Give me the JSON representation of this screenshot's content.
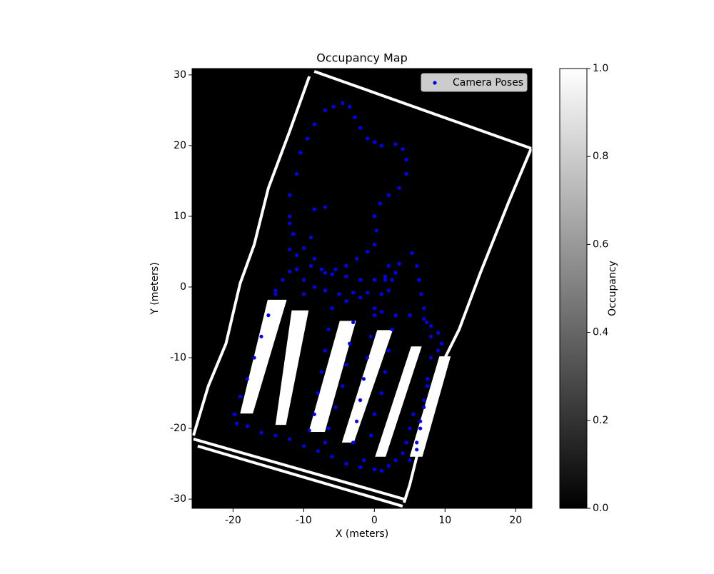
{
  "chart_data": {
    "type": "scatter",
    "title": "Occupancy Map",
    "x_label": "X (meters)",
    "y_label": "Y (meters)",
    "xlim": [
      -25.8,
      22.3
    ],
    "ylim": [
      -31.3,
      30.9
    ],
    "xticks": [
      -20,
      -10,
      0,
      10,
      20
    ],
    "yticks": [
      -30,
      -20,
      -10,
      0,
      10,
      20,
      30
    ],
    "legend": "upper right",
    "occupancy": {
      "empty_color": "#000000",
      "occupied_color": "#ffffff",
      "walls": [
        {
          "x": [
            -8.5,
            22.2
          ],
          "y": [
            30.5,
            19.6
          ]
        },
        {
          "x": [
            -9.2,
            -12,
            -15,
            -17,
            -19,
            -21,
            -23.5,
            -25.6
          ],
          "y": [
            29.8,
            22,
            14,
            6,
            0.5,
            -8,
            -14,
            -21
          ]
        },
        {
          "x": [
            -25.6,
            4.2
          ],
          "y": [
            -21.5,
            -30
          ]
        },
        {
          "x": [
            -25,
            4
          ],
          "y": [
            -22.5,
            -31
          ]
        },
        {
          "x": [
            22.2,
            19,
            15,
            12,
            10,
            7,
            5,
            4.2
          ],
          "y": [
            19.6,
            12,
            2,
            -6,
            -10,
            -20,
            -28,
            -30.5
          ]
        }
      ],
      "pillars": [
        {
          "x": [
            -15.1,
            -12.4,
            -17.2,
            -19
          ],
          "y": [
            -1.8,
            -1.8,
            -17.9,
            -17.9
          ]
        },
        {
          "x": [
            -11.7,
            -9.3,
            -12.5,
            -14
          ],
          "y": [
            -3.3,
            -3.3,
            -19.5,
            -19.5
          ]
        },
        {
          "x": [
            -4.9,
            -2.6,
            -7,
            -9.3
          ],
          "y": [
            -4.8,
            -4.8,
            -20.5,
            -20.5
          ]
        },
        {
          "x": [
            0.4,
            2.6,
            -2.9,
            -4.6
          ],
          "y": [
            -6.1,
            -6.1,
            -22,
            -22
          ]
        },
        {
          "x": [
            5.2,
            6.7,
            1.6,
            0.1
          ],
          "y": [
            -8.4,
            -8.4,
            -24,
            -24
          ]
        },
        {
          "x": [
            9.2,
            10.8,
            6.8,
            5
          ],
          "y": [
            -9.8,
            -9.8,
            -24,
            -24
          ]
        }
      ]
    },
    "colorbar": {
      "label": "Occupancy",
      "lim": [
        0,
        1
      ],
      "ticks": [
        {
          "value": 0,
          "label": "0.0"
        },
        {
          "value": 0.2,
          "label": "0.2"
        },
        {
          "value": 0.4,
          "label": "0.4"
        },
        {
          "value": 0.6,
          "label": "0.6"
        },
        {
          "value": 0.8,
          "label": "0.8"
        },
        {
          "value": 1,
          "label": "1.0"
        }
      ]
    },
    "series": [
      {
        "name": "Camera Poses",
        "color": "#0000ff",
        "x": [
          -9,
          -12,
          -12,
          -11,
          -10.5,
          -9.5,
          -8.5,
          -7,
          -5.8,
          -4.5,
          -3.5,
          -2.8,
          -2,
          -1,
          0,
          1,
          3,
          4,
          4.5,
          4.5,
          3.5,
          2,
          0.8,
          0,
          0.3,
          0,
          -1,
          -2.5,
          -4,
          -5.5,
          -7,
          -8.5,
          -10,
          -11.5,
          -12,
          -8.5,
          -7,
          -12,
          -11,
          -9,
          -7.5,
          -6,
          -4,
          -2,
          0,
          1.5,
          2.5,
          3,
          3.5,
          2,
          1.5,
          2,
          1,
          -1,
          -3,
          -5,
          -7,
          -8.5,
          -10,
          -10,
          -11,
          -12,
          -13,
          -14,
          -14,
          -15,
          -16,
          -17,
          -18,
          -19,
          -19.8,
          -19.5,
          -18,
          -16,
          -14,
          -12,
          -10,
          -8,
          -6,
          -4,
          -2,
          0,
          1,
          5.3,
          6,
          6.3,
          6.6,
          7,
          7.4,
          8,
          9,
          9.5,
          8,
          7.5,
          7,
          6.5,
          6,
          5.5,
          5,
          4.5,
          4,
          3,
          2,
          -6,
          -6.5,
          -7,
          -7.5,
          -8,
          -8.5,
          -9.2,
          -3,
          -3.5,
          -4,
          -4.5,
          -5.5,
          -6.5,
          -7,
          0,
          -0.5,
          -1,
          -1.5,
          -2,
          -2.5,
          -3,
          2.5,
          2,
          1.5,
          1,
          0,
          -0.5,
          -1.5,
          3,
          5,
          7,
          8,
          9,
          7.5,
          7,
          6.5,
          6,
          5,
          -4,
          -2,
          0,
          1
        ],
        "y": [
          7,
          10,
          13,
          16,
          19,
          21,
          23,
          25,
          25.5,
          26,
          25.5,
          24,
          22.5,
          21,
          20.5,
          20,
          20.2,
          19.5,
          18,
          16,
          14,
          13,
          11.8,
          10,
          8,
          6,
          5,
          4,
          3,
          2.5,
          2,
          4,
          5.5,
          7.5,
          9,
          11,
          11.3,
          5.3,
          4.5,
          3,
          2.5,
          1.8,
          1.5,
          1,
          1,
          1,
          1,
          2,
          3.3,
          3,
          1.5,
          -0.5,
          -1,
          -0.8,
          -0.8,
          -1,
          -0.5,
          0,
          -1,
          1,
          2.5,
          2.2,
          1,
          -0.5,
          -1,
          -4,
          -7,
          -10,
          -13,
          -15.5,
          -18,
          -19.3,
          -19.7,
          -20.6,
          -21,
          -21.5,
          -22.5,
          -23.2,
          -24,
          -25,
          -25.5,
          -25.8,
          -26,
          4.8,
          3,
          1,
          -1,
          -3,
          -5,
          -7,
          -6.5,
          -8,
          -10,
          -13,
          -16,
          -19,
          -22,
          -18,
          -20,
          -22,
          -23.5,
          -24.5,
          -25.3,
          -3,
          -6,
          -9,
          -12,
          -15,
          -18,
          -20.3,
          -5,
          -8,
          -11,
          -14,
          -17,
          -20,
          -22,
          -4,
          -7,
          -10,
          -13,
          -16,
          -19,
          -22,
          -6,
          -9,
          -12,
          -15,
          -18,
          -21,
          -24.5,
          -4,
          -4,
          -4.5,
          -5.5,
          -9,
          -14,
          -17,
          -20,
          -23,
          -24.5,
          -2,
          -1.5,
          -3,
          -3.5
        ]
      }
    ]
  }
}
